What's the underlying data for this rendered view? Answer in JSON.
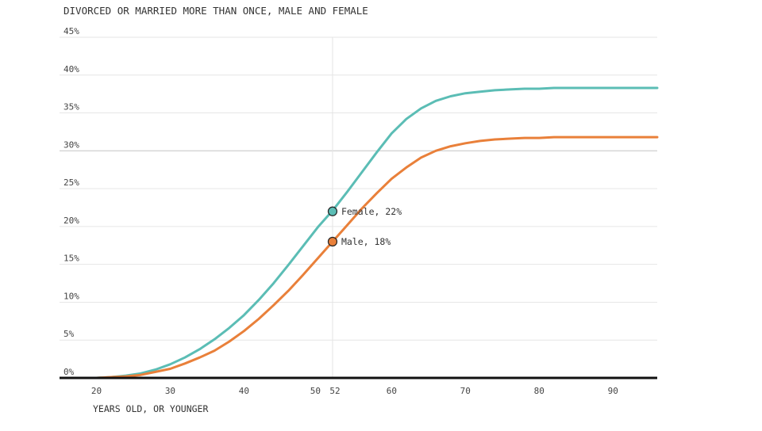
{
  "chart_data": {
    "type": "line",
    "title": "DIVORCED OR MARRIED MORE THAN ONCE, MALE AND FEMALE",
    "xlabel": "YEARS OLD, OR YOUNGER",
    "ylabel": "",
    "xlim": [
      15,
      96
    ],
    "ylim": [
      0,
      45
    ],
    "x_ticks": [
      20,
      30,
      40,
      50,
      52,
      60,
      70,
      80,
      90
    ],
    "x_tick_labels": [
      "20",
      "30",
      "40",
      "50",
      "52",
      "60",
      "70",
      "80",
      "90"
    ],
    "y_ticks": [
      0,
      5,
      10,
      15,
      20,
      25,
      30,
      35,
      40,
      45
    ],
    "y_tick_labels": [
      "0%",
      "5%",
      "10%",
      "15%",
      "20%",
      "25%",
      "30%",
      "35%",
      "40%",
      "45%"
    ],
    "grid": true,
    "highlight_x": 52,
    "series": [
      {
        "name": "Female",
        "color": "#5bbdb5",
        "x": [
          18,
          20,
          22,
          24,
          26,
          28,
          30,
          32,
          34,
          36,
          38,
          40,
          42,
          44,
          46,
          48,
          50,
          52,
          54,
          56,
          58,
          60,
          62,
          64,
          66,
          68,
          70,
          72,
          74,
          76,
          78,
          80,
          82,
          84,
          86,
          88,
          90,
          92,
          94,
          96
        ],
        "values": [
          0,
          0,
          0.1,
          0.3,
          0.6,
          1.1,
          1.8,
          2.7,
          3.8,
          5.1,
          6.6,
          8.3,
          10.3,
          12.5,
          14.9,
          17.4,
          19.9,
          22.1,
          24.6,
          27.2,
          29.8,
          32.3,
          34.2,
          35.6,
          36.6,
          37.2,
          37.6,
          37.8,
          38.0,
          38.1,
          38.2,
          38.2,
          38.3,
          38.3,
          38.3,
          38.3,
          38.3,
          38.3,
          38.3,
          38.3
        ]
      },
      {
        "name": "Male",
        "color": "#e9803a",
        "x": [
          18,
          20,
          22,
          24,
          26,
          28,
          30,
          32,
          34,
          36,
          38,
          40,
          42,
          44,
          46,
          48,
          50,
          52,
          54,
          56,
          58,
          60,
          62,
          64,
          66,
          68,
          70,
          72,
          74,
          76,
          78,
          80,
          82,
          84,
          86,
          88,
          90,
          92,
          94,
          96
        ],
        "values": [
          0,
          0,
          0.1,
          0.2,
          0.4,
          0.8,
          1.2,
          1.9,
          2.7,
          3.6,
          4.8,
          6.2,
          7.8,
          9.6,
          11.5,
          13.6,
          15.8,
          18.0,
          20.2,
          22.4,
          24.4,
          26.3,
          27.8,
          29.1,
          30.0,
          30.6,
          31.0,
          31.3,
          31.5,
          31.6,
          31.7,
          31.7,
          31.8,
          31.8,
          31.8,
          31.8,
          31.8,
          31.8,
          31.8,
          31.8
        ]
      }
    ],
    "annotations": [
      {
        "series": "Female",
        "x": 52,
        "y": 22,
        "text": "Female, 22%"
      },
      {
        "series": "Male",
        "x": 52,
        "y": 18,
        "text": "Male, 18%"
      }
    ]
  }
}
